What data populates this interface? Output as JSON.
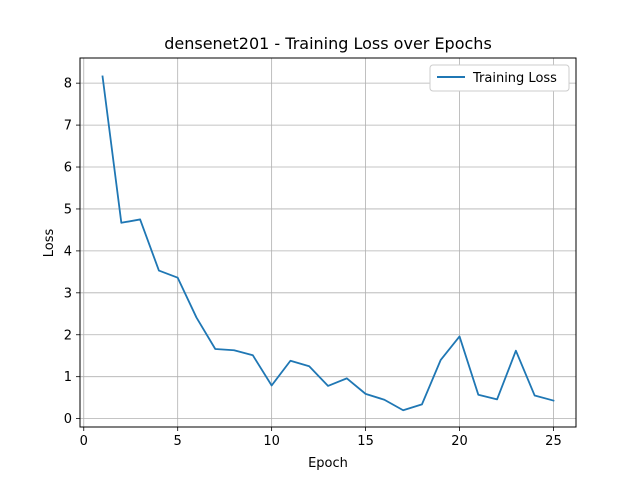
{
  "chart_data": {
    "type": "line",
    "title": "densenet201 - Training Loss over Epochs",
    "xlabel": "Epoch",
    "ylabel": "Loss",
    "xlim": [
      -0.2,
      26.2
    ],
    "ylim": [
      -0.2,
      8.6
    ],
    "xticks": [
      0,
      5,
      10,
      15,
      20,
      25
    ],
    "yticks": [
      0,
      1,
      2,
      3,
      4,
      5,
      6,
      7,
      8
    ],
    "grid": true,
    "legend_position": "top-right",
    "series": [
      {
        "name": "Training Loss",
        "color": "#1f77b4",
        "x": [
          1,
          2,
          3,
          4,
          5,
          6,
          7,
          8,
          9,
          10,
          11,
          12,
          13,
          14,
          15,
          16,
          17,
          18,
          19,
          20,
          21,
          22,
          23,
          24,
          25
        ],
        "y": [
          8.16,
          4.67,
          4.75,
          3.53,
          3.36,
          2.41,
          1.66,
          1.63,
          1.51,
          0.79,
          1.38,
          1.25,
          0.78,
          0.96,
          0.59,
          0.45,
          0.2,
          0.34,
          1.4,
          1.96,
          0.57,
          0.46,
          1.62,
          0.55,
          0.43
        ]
      }
    ]
  }
}
